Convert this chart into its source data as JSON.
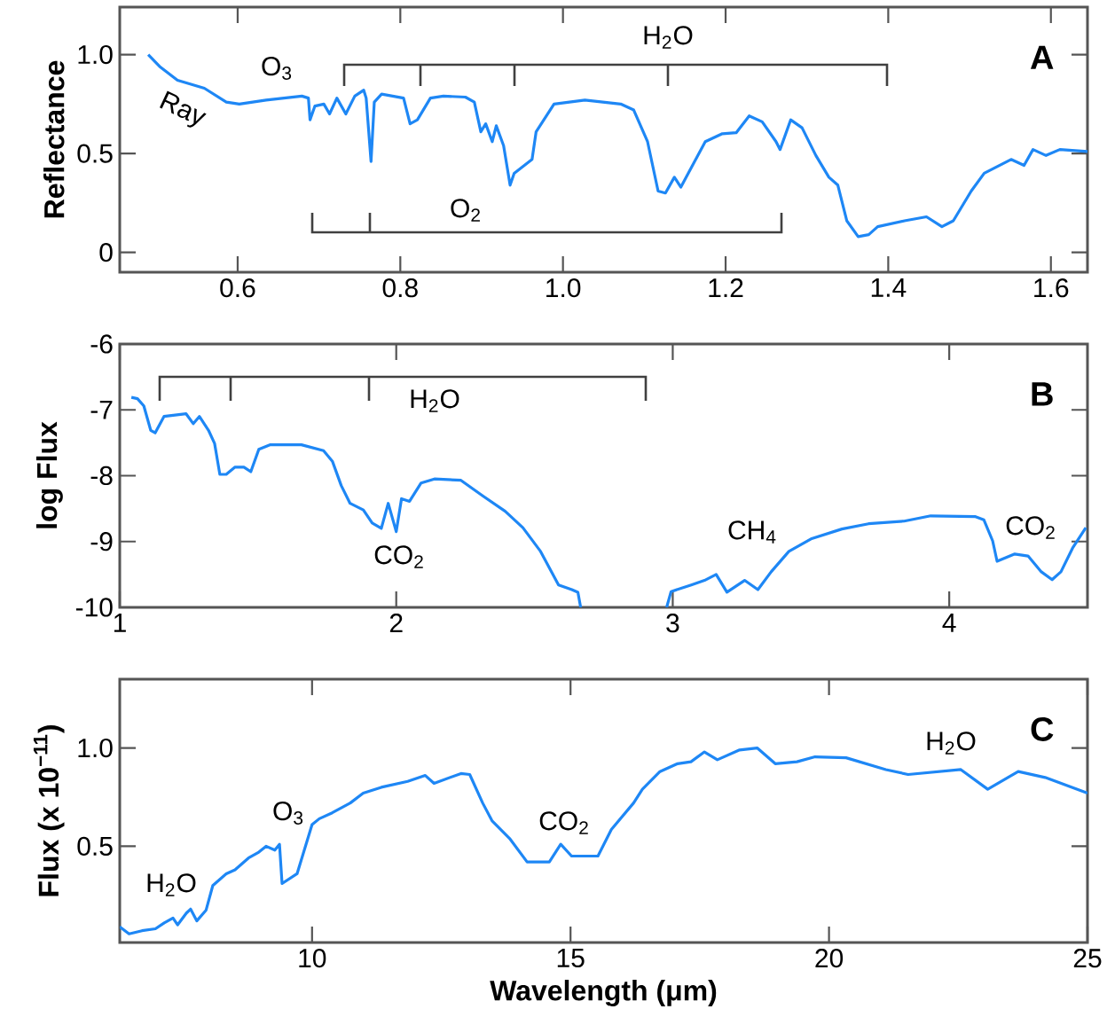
{
  "chart_data": [
    {
      "type": "line",
      "title": "A",
      "ylabel": "Reflectance",
      "x": [
        0.49,
        0.504,
        0.526,
        0.559,
        0.586,
        0.602,
        0.635,
        0.679,
        0.687,
        0.689,
        0.695,
        0.706,
        0.713,
        0.722,
        0.733,
        0.744,
        0.755,
        0.758,
        0.764,
        0.768,
        0.777,
        0.804,
        0.812,
        0.821,
        0.837,
        0.853,
        0.88,
        0.891,
        0.899,
        0.905,
        0.913,
        0.918,
        0.927,
        0.935,
        0.94,
        0.962,
        0.967,
        0.989,
        1.027,
        1.071,
        1.087,
        1.104,
        1.117,
        1.126,
        1.137,
        1.145,
        1.158,
        1.175,
        1.196,
        1.213,
        1.229,
        1.245,
        1.262,
        1.267,
        1.28,
        1.294,
        1.311,
        1.327,
        1.338,
        1.349,
        1.363,
        1.376,
        1.387,
        1.42,
        1.447,
        1.466,
        1.48,
        1.502,
        1.518,
        1.551,
        1.567,
        1.578,
        1.594,
        1.611,
        1.645
      ],
      "values": [
        1.0,
        0.94,
        0.87,
        0.83,
        0.76,
        0.75,
        0.77,
        0.79,
        0.78,
        0.67,
        0.74,
        0.75,
        0.7,
        0.78,
        0.7,
        0.79,
        0.82,
        0.78,
        0.46,
        0.76,
        0.8,
        0.78,
        0.65,
        0.67,
        0.78,
        0.79,
        0.785,
        0.76,
        0.61,
        0.65,
        0.56,
        0.64,
        0.54,
        0.34,
        0.4,
        0.47,
        0.61,
        0.75,
        0.77,
        0.75,
        0.72,
        0.56,
        0.31,
        0.3,
        0.38,
        0.33,
        0.43,
        0.56,
        0.6,
        0.605,
        0.69,
        0.66,
        0.56,
        0.52,
        0.67,
        0.63,
        0.49,
        0.38,
        0.34,
        0.16,
        0.08,
        0.09,
        0.13,
        0.16,
        0.18,
        0.13,
        0.16,
        0.31,
        0.4,
        0.47,
        0.44,
        0.52,
        0.49,
        0.52,
        0.51
      ],
      "color": "#1e87f5",
      "xlim": [
        0.455,
        1.645
      ],
      "ylim": [
        -0.1,
        1.24
      ],
      "xticks": [
        {
          "value": 0.6,
          "label": "0.6"
        },
        {
          "value": 0.8,
          "label": "0.8"
        },
        {
          "value": 1.0,
          "label": "1.0"
        },
        {
          "value": 1.2,
          "label": "1.2"
        },
        {
          "value": 1.4,
          "label": "1.4"
        },
        {
          "value": 1.6,
          "label": "1.6"
        }
      ],
      "yticks": [
        0,
        0.5,
        {
          "value": 1.0,
          "label": "1.0"
        }
      ],
      "annotations": [
        "Ray",
        "O$_{3}$",
        "H$_{2}$O",
        "O$_{2}$"
      ]
    },
    {
      "type": "line",
      "title": "B",
      "ylabel": "log Flux",
      "x": [
        1.042,
        1.064,
        1.087,
        1.112,
        1.128,
        1.16,
        1.24,
        1.266,
        1.288,
        1.321,
        1.343,
        1.362,
        1.385,
        1.417,
        1.449,
        1.474,
        1.503,
        1.545,
        1.657,
        1.737,
        1.769,
        1.801,
        1.833,
        1.881,
        1.913,
        1.946,
        1.971,
        2.0,
        2.019,
        2.048,
        2.09,
        2.138,
        2.234,
        2.314,
        2.394,
        2.458,
        2.522,
        2.587,
        2.635,
        2.657,
        2.667,
        2.82,
        2.978,
        2.994,
        3.067,
        3.115,
        3.157,
        3.196,
        3.26,
        3.308,
        3.356,
        3.42,
        3.5,
        3.612,
        3.708,
        3.837,
        3.933,
        4.093,
        4.125,
        4.157,
        4.173,
        4.237,
        4.285,
        4.333,
        4.372,
        4.404,
        4.446,
        4.494
      ],
      "values": [
        -6.81,
        -6.83,
        -6.94,
        -7.31,
        -7.35,
        -7.1,
        -7.06,
        -7.21,
        -7.1,
        -7.31,
        -7.51,
        -7.98,
        -7.98,
        -7.87,
        -7.87,
        -7.94,
        -7.6,
        -7.53,
        -7.53,
        -7.62,
        -7.78,
        -8.15,
        -8.42,
        -8.52,
        -8.72,
        -8.8,
        -8.42,
        -8.85,
        -8.35,
        -8.39,
        -8.11,
        -8.05,
        -8.07,
        -8.31,
        -8.54,
        -8.79,
        -9.15,
        -9.66,
        -9.73,
        -9.77,
        -10.0,
        null,
        -10.0,
        -9.76,
        -9.66,
        -9.59,
        -9.5,
        -9.77,
        -9.59,
        -9.73,
        -9.46,
        -9.15,
        -8.96,
        -8.81,
        -8.73,
        -8.69,
        -8.61,
        -8.62,
        -8.67,
        -8.99,
        -9.3,
        -9.19,
        -9.22,
        -9.46,
        -9.58,
        -9.46,
        -9.1,
        -8.79
      ],
      "color": "#1e87f5",
      "xlim": [
        1,
        4.5
      ],
      "ylim": [
        -10,
        -6
      ],
      "xticks": [
        1,
        2,
        3,
        4
      ],
      "yticks": [
        -10,
        -9,
        -8,
        -7,
        -6
      ],
      "annotations": [
        "H$_{2}$O",
        "CO$_{2}$",
        "CH$_{4}$",
        "CO$_{2}$"
      ]
    },
    {
      "type": "line",
      "title": "C",
      "ylabel": "Flux (x 10$^{−11}$)",
      "xlabel": "Wavelength (μm)",
      "x": [
        6.28,
        6.46,
        6.71,
        6.97,
        7.14,
        7.31,
        7.4,
        7.57,
        7.65,
        7.77,
        7.95,
        8.08,
        8.34,
        8.51,
        8.77,
        8.97,
        9.11,
        9.28,
        9.37,
        9.42,
        9.71,
        10.0,
        10.14,
        10.39,
        10.74,
        10.99,
        11.34,
        11.85,
        12.19,
        12.36,
        12.88,
        13.05,
        13.3,
        13.48,
        13.82,
        14.16,
        14.59,
        14.81,
        15.02,
        15.53,
        15.79,
        16.22,
        16.39,
        16.73,
        17.07,
        17.33,
        17.59,
        17.84,
        18.27,
        18.61,
        18.96,
        19.38,
        19.73,
        20.33,
        21.1,
        21.53,
        22.55,
        23.07,
        23.66,
        24.18,
        25.0
      ],
      "values": [
        0.09,
        0.054,
        0.07,
        0.08,
        0.11,
        0.135,
        0.1,
        0.16,
        0.18,
        0.12,
        0.175,
        0.3,
        0.36,
        0.38,
        0.44,
        0.47,
        0.5,
        0.48,
        0.51,
        0.31,
        0.36,
        0.61,
        0.64,
        0.67,
        0.72,
        0.77,
        0.8,
        0.83,
        0.86,
        0.82,
        0.87,
        0.865,
        0.72,
        0.63,
        0.54,
        0.42,
        0.42,
        0.51,
        0.45,
        0.45,
        0.585,
        0.72,
        0.79,
        0.88,
        0.92,
        0.93,
        0.98,
        0.94,
        0.99,
        1.0,
        0.92,
        0.93,
        0.955,
        0.95,
        0.89,
        0.865,
        0.89,
        0.79,
        0.88,
        0.85,
        0.77
      ],
      "color": "#1e87f5",
      "xlim": [
        6.28,
        25
      ],
      "ylim": [
        0.01,
        1.35
      ],
      "xticks": [
        10,
        15,
        20,
        25
      ],
      "yticks": [
        0.5,
        {
          "value": 1.0,
          "label": "1.0"
        }
      ],
      "annotations": [
        "H$_{2}$O",
        "O$_{3}$",
        "CO$_{2}$",
        "H$_{2}$O"
      ]
    }
  ]
}
